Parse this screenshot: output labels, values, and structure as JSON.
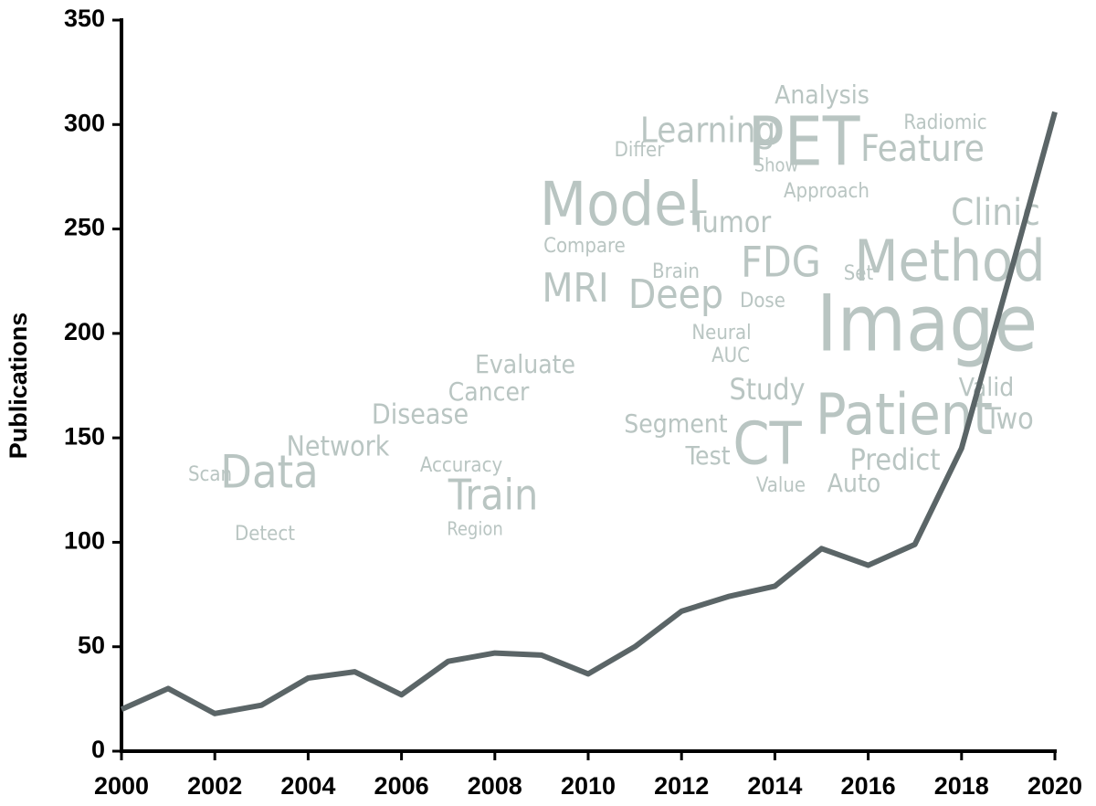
{
  "chart_data": {
    "type": "line",
    "y_label": "Publications",
    "x": [
      2000,
      2001,
      2002,
      2003,
      2004,
      2005,
      2006,
      2007,
      2008,
      2009,
      2010,
      2011,
      2012,
      2013,
      2014,
      2015,
      2016,
      2017,
      2018,
      2019,
      2020
    ],
    "series": [
      {
        "name": "Publications",
        "color": "#5b6567",
        "values": [
          20,
          30,
          18,
          22,
          35,
          38,
          27,
          43,
          47,
          46,
          37,
          50,
          67,
          74,
          79,
          97,
          89,
          99,
          145,
          225,
          306
        ]
      }
    ],
    "xlim": [
      2000,
      2020
    ],
    "xticks": [
      2000,
      2002,
      2004,
      2006,
      2008,
      2010,
      2012,
      2014,
      2016,
      2018,
      2020
    ],
    "ylim": [
      0,
      350
    ],
    "yticks": [
      0,
      50,
      100,
      150,
      200,
      250,
      300,
      350
    ],
    "grid": false,
    "word_cloud": [
      "Image",
      "Patient",
      "Method",
      "PET",
      "Model",
      "CT",
      "Data",
      "Train",
      "FDG",
      "Deep",
      "MRI",
      "Network",
      "Disease",
      "Cancer",
      "Evaluate",
      "Feature",
      "Learning",
      "Clinic",
      "Tumor",
      "Study",
      "Predict",
      "Analysis",
      "Segment",
      "Test",
      "Two",
      "Auto",
      "Valid",
      "Detect",
      "Scan",
      "Accuracy",
      "Radiomic",
      "Brain",
      "Neural",
      "AUC",
      "Dose",
      "Compare",
      "Approach",
      "Show",
      "Differ",
      "Region",
      "Value",
      "Set"
    ]
  }
}
